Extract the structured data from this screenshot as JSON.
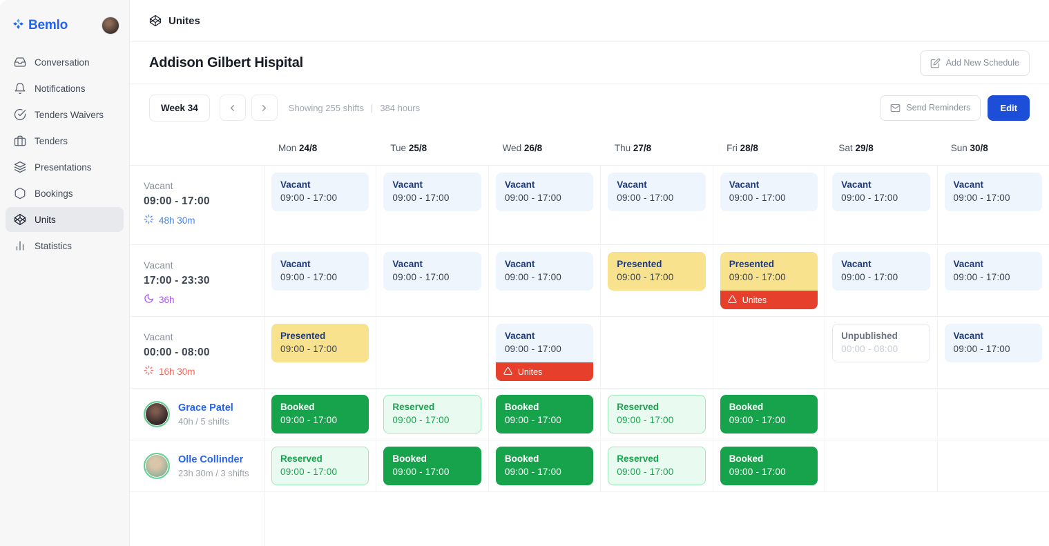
{
  "colors": {
    "accent_blue": "#1d4ed8",
    "link_blue": "#2563eb",
    "vacant_bg": "#eef5fd",
    "presented_bg": "#f9e28e",
    "booked_green": "#17a34c",
    "reserved_bg": "#e9faf0",
    "alert_red": "#e6402d",
    "duration_day": "#3f87f5",
    "duration_evening": "#a855f7",
    "duration_night": "#f2685c"
  },
  "sidebar": {
    "logo_text": "Bemlo",
    "items": [
      {
        "id": "conversation",
        "label": "Conversation",
        "icon": "inbox-icon",
        "active": false
      },
      {
        "id": "notifications",
        "label": "Notifications",
        "icon": "bell-icon",
        "active": false
      },
      {
        "id": "tenders-waivers",
        "label": "Tenders Waivers",
        "icon": "check-circle-icon",
        "active": false
      },
      {
        "id": "tenders",
        "label": "Tenders",
        "icon": "briefcase-icon",
        "active": false
      },
      {
        "id": "presentations",
        "label": "Presentations",
        "icon": "layers-icon",
        "active": false
      },
      {
        "id": "bookings",
        "label": "Bookings",
        "icon": "hexagon-icon",
        "active": false
      },
      {
        "id": "units",
        "label": "Units",
        "icon": "cube-icon",
        "active": true
      },
      {
        "id": "statistics",
        "label": "Statistics",
        "icon": "bar-chart-icon",
        "active": false
      }
    ]
  },
  "topbar": {
    "title": "Unites"
  },
  "page": {
    "title": "Addison Gilbert Hispital",
    "add_schedule_label": "Add New Schedule"
  },
  "toolbar": {
    "week_label": "Week 34",
    "shifts_label": "Showing 255 shifts",
    "divider": "|",
    "hours_label": "384 hours",
    "send_reminders_label": "Send Reminders",
    "edit_label": "Edit"
  },
  "days": [
    {
      "name": "Mon",
      "date": "24/8"
    },
    {
      "name": "Tue",
      "date": "25/8"
    },
    {
      "name": "Wed",
      "date": "26/8"
    },
    {
      "name": "Thu",
      "date": "27/8"
    },
    {
      "name": "Fri",
      "date": "28/8"
    },
    {
      "name": "Sat",
      "date": "29/8"
    },
    {
      "name": "Sun",
      "date": "30/8"
    }
  ],
  "rows": [
    {
      "kind": "shift",
      "id": "day-shift",
      "label": "Vacant",
      "time": "09:00 - 17:00",
      "duration": "48h 30m",
      "duration_icon": "sun-icon",
      "tone": "day",
      "height": "row-h1",
      "cells": [
        {
          "status": "vacant",
          "title": "Vacant",
          "time": "09:00 - 17:00"
        },
        {
          "status": "vacant",
          "title": "Vacant",
          "time": "09:00 - 17:00"
        },
        {
          "status": "vacant",
          "title": "Vacant",
          "time": "09:00 - 17:00"
        },
        {
          "status": "vacant",
          "title": "Vacant",
          "time": "09:00 - 17:00"
        },
        {
          "status": "vacant",
          "title": "Vacant",
          "time": "09:00 - 17:00"
        },
        {
          "status": "vacant",
          "title": "Vacant",
          "time": "09:00 - 17:00"
        },
        {
          "status": "vacant",
          "title": "Vacant",
          "time": "09:00 - 17:00"
        }
      ]
    },
    {
      "kind": "shift",
      "id": "evening-shift",
      "label": "Vacant",
      "time": "17:00 - 23:30",
      "duration": "36h",
      "duration_icon": "moon-icon",
      "tone": "evening",
      "height": "row-h2",
      "cells": [
        {
          "status": "vacant",
          "title": "Vacant",
          "time": "09:00 - 17:00"
        },
        {
          "status": "vacant",
          "title": "Vacant",
          "time": "09:00 - 17:00"
        },
        {
          "status": "vacant",
          "title": "Vacant",
          "time": "09:00 - 17:00"
        },
        {
          "status": "presented",
          "title": "Presented",
          "time": "09:00 - 17:00"
        },
        {
          "status": "presented",
          "title": "Presented",
          "time": "09:00 - 17:00",
          "badge": "Unites"
        },
        {
          "status": "vacant",
          "title": "Vacant",
          "time": "09:00 - 17:00"
        },
        {
          "status": "vacant",
          "title": "Vacant",
          "time": "09:00 - 17:00"
        }
      ]
    },
    {
      "kind": "shift",
      "id": "night-shift",
      "label": "Vacant",
      "time": "00:00 - 08:00",
      "duration": "16h 30m",
      "duration_icon": "sun-icon",
      "tone": "night",
      "height": "row-h2",
      "cells": [
        {
          "status": "presented",
          "title": "Presented",
          "time": "09:00 - 17:00"
        },
        null,
        {
          "status": "vacant",
          "title": "Vacant",
          "time": "09:00 - 17:00",
          "badge": "Unites"
        },
        null,
        null,
        {
          "status": "unpublished",
          "title": "Unpublished",
          "time": "00:00 - 08:00"
        },
        {
          "status": "vacant",
          "title": "Vacant",
          "time": "09:00 - 17:00"
        }
      ]
    },
    {
      "kind": "staff",
      "id": "grace-patel",
      "name": "Grace Patel",
      "meta": "40h / 5 shifts",
      "avatar": "grace",
      "height": "row-staff",
      "cells": [
        {
          "status": "booked",
          "title": "Booked",
          "time": "09:00 - 17:00"
        },
        {
          "status": "reserved",
          "title": "Reserved",
          "time": "09:00 - 17:00"
        },
        {
          "status": "booked",
          "title": "Booked",
          "time": "09:00 - 17:00"
        },
        {
          "status": "reserved",
          "title": "Reserved",
          "time": "09:00 - 17:00"
        },
        {
          "status": "booked",
          "title": "Booked",
          "time": "09:00 - 17:00"
        },
        null,
        null
      ]
    },
    {
      "kind": "staff",
      "id": "olle-collinder",
      "name": "Olle Collinder",
      "meta": "23h 30m / 3 shifts",
      "avatar": "olle",
      "height": "row-staff",
      "cells": [
        {
          "status": "reserved",
          "title": "Reserved",
          "time": "09:00 - 17:00"
        },
        {
          "status": "booked",
          "title": "Booked",
          "time": "09:00 - 17:00"
        },
        {
          "status": "booked",
          "title": "Booked",
          "time": "09:00 - 17:00"
        },
        {
          "status": "reserved",
          "title": "Reserved",
          "time": "09:00 - 17:00"
        },
        {
          "status": "booked",
          "title": "Booked",
          "time": "09:00 - 17:00"
        },
        null,
        null
      ]
    }
  ],
  "badge_icon": "warning-icon"
}
